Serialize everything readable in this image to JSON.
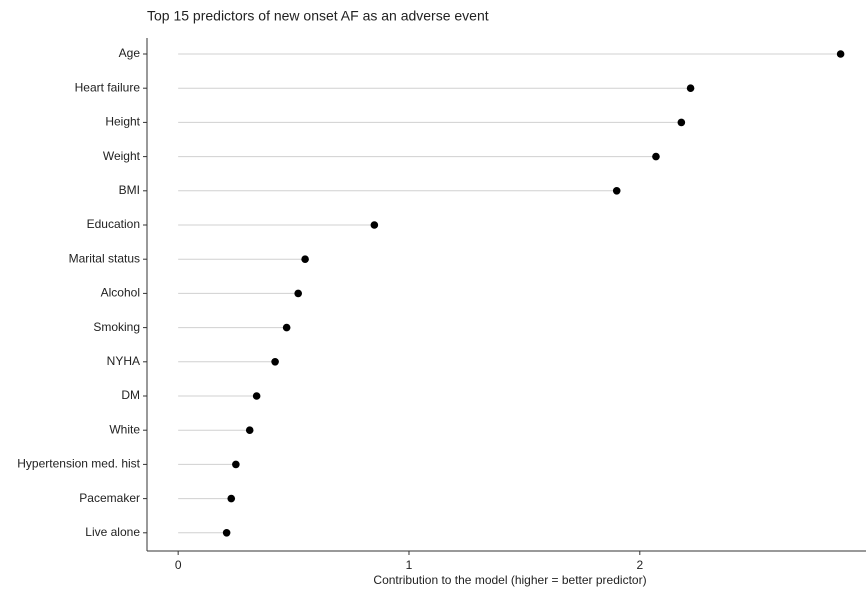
{
  "chart_data": {
    "type": "lollipop",
    "title": "Top 15 predictors of new onset AF as an adverse event",
    "x_label": "Contribution to the model (higher = better predictor)",
    "categories": [
      "Age",
      "Heart failure",
      "Height",
      "Weight",
      "BMI",
      "Education",
      "Marital status",
      "Alcohol",
      "Smoking",
      "NYHA",
      "DM",
      "White",
      "Hypertension med. hist",
      "Pacemaker",
      "Live alone"
    ],
    "values": [
      2.87,
      2.22,
      2.18,
      2.07,
      1.9,
      0.85,
      0.55,
      0.52,
      0.47,
      0.42,
      0.34,
      0.31,
      0.25,
      0.23,
      0.21
    ],
    "color": "#000000",
    "xlim": [
      -0.135,
      2.98
    ],
    "xticks": [
      0,
      1,
      2
    ]
  }
}
